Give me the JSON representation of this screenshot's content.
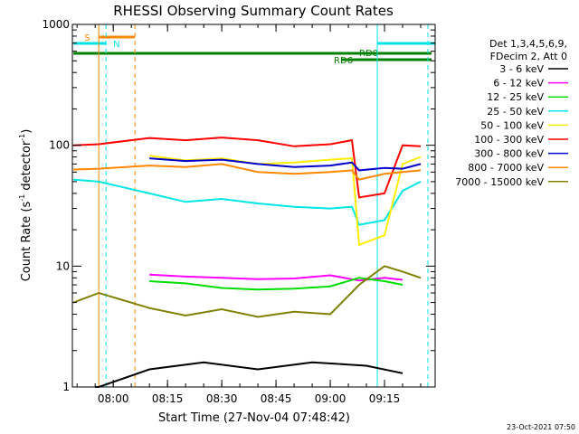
{
  "chart_data": {
    "type": "line",
    "title": "RHESSI Observing Summary Count Rates",
    "xlabel": "Start Time (27-Nov-04 07:48:42)",
    "ylabel_main": "Count Rate (s",
    "ylabel_sup1": "-1",
    "ylabel_mid": " detector",
    "ylabel_sup2": "-1",
    "ylabel_end": ")",
    "yscale": "log",
    "ylim": [
      1,
      1000
    ],
    "xlim": [
      "07:48:42",
      "09:29:00"
    ],
    "xticks": [
      "08:00",
      "08:15",
      "08:30",
      "08:45",
      "09:00",
      "09:15"
    ],
    "yticks": [
      "1",
      "10",
      "100",
      "1000"
    ],
    "date_stamp": "23-Oct-2021 07:50",
    "legend_header": [
      "Det 1,3,4,5,6,9,",
      "FDecim 2, Att 0"
    ],
    "series": [
      {
        "name": "3 - 6 keV",
        "color": "#000000",
        "points": [
          [
            "07:55",
            1
          ],
          [
            "07:56",
            1
          ],
          [
            "08:10",
            1.4
          ],
          [
            "08:25",
            1.6
          ],
          [
            "08:40",
            1.4
          ],
          [
            "08:55",
            1.6
          ],
          [
            "09:10",
            1.5
          ],
          [
            "09:20",
            1.3
          ]
        ]
      },
      {
        "name": "6 - 12 keV",
        "color": "#ff00ff",
        "points": [
          [
            "08:10",
            8.5
          ],
          [
            "08:20",
            8.2
          ],
          [
            "08:30",
            8
          ],
          [
            "08:40",
            7.8
          ],
          [
            "08:50",
            7.9
          ],
          [
            "09:00",
            8.4
          ],
          [
            "09:08",
            7.6
          ],
          [
            "09:15",
            8
          ],
          [
            "09:20",
            7.7
          ]
        ]
      },
      {
        "name": "12 - 25 keV",
        "color": "#00dd00",
        "points": [
          [
            "08:10",
            7.5
          ],
          [
            "08:20",
            7.2
          ],
          [
            "08:30",
            6.6
          ],
          [
            "08:40",
            6.4
          ],
          [
            "08:50",
            6.5
          ],
          [
            "09:00",
            6.8
          ],
          [
            "09:08",
            8
          ],
          [
            "09:15",
            7.5
          ],
          [
            "09:20",
            7
          ]
        ]
      },
      {
        "name": "25 - 50 keV",
        "color": "#00e5e5",
        "points": [
          [
            "07:49",
            52
          ],
          [
            "07:56",
            50
          ],
          [
            "08:10",
            40
          ],
          [
            "08:20",
            34
          ],
          [
            "08:30",
            36
          ],
          [
            "08:40",
            33
          ],
          [
            "08:50",
            31
          ],
          [
            "09:00",
            30
          ],
          [
            "09:06",
            31
          ],
          [
            "09:08",
            22
          ],
          [
            "09:15",
            24
          ],
          [
            "09:20",
            42
          ],
          [
            "09:25",
            50
          ]
        ]
      },
      {
        "name": "50 - 100 keV",
        "color": "#ffee00",
        "points": [
          [
            "08:10",
            82
          ],
          [
            "08:20",
            75
          ],
          [
            "08:30",
            78
          ],
          [
            "08:40",
            70
          ],
          [
            "08:50",
            72
          ],
          [
            "09:00",
            76
          ],
          [
            "09:06",
            78
          ],
          [
            "09:08",
            15
          ],
          [
            "09:15",
            18
          ],
          [
            "09:20",
            70
          ],
          [
            "09:25",
            80
          ]
        ]
      },
      {
        "name": "100 - 300 keV",
        "color": "#ff0000",
        "points": [
          [
            "07:49",
            100
          ],
          [
            "07:56",
            102
          ],
          [
            "08:10",
            115
          ],
          [
            "08:20",
            110
          ],
          [
            "08:30",
            116
          ],
          [
            "08:40",
            110
          ],
          [
            "08:50",
            98
          ],
          [
            "09:00",
            102
          ],
          [
            "09:06",
            110
          ],
          [
            "09:08",
            37
          ],
          [
            "09:15",
            40
          ],
          [
            "09:20",
            100
          ],
          [
            "09:25",
            98
          ]
        ]
      },
      {
        "name": "300 - 800 keV",
        "color": "#0000cc",
        "points": [
          [
            "08:10",
            78
          ],
          [
            "08:20",
            74
          ],
          [
            "08:30",
            76
          ],
          [
            "08:40",
            70
          ],
          [
            "08:50",
            66
          ],
          [
            "09:00",
            68
          ],
          [
            "09:06",
            72
          ],
          [
            "09:08",
            62
          ],
          [
            "09:15",
            65
          ],
          [
            "09:20",
            64
          ],
          [
            "09:25",
            70
          ]
        ]
      },
      {
        "name": "800 - 7000 keV",
        "color": "#ff8800",
        "points": [
          [
            "07:49",
            63
          ],
          [
            "07:56",
            64
          ],
          [
            "08:10",
            68
          ],
          [
            "08:20",
            66
          ],
          [
            "08:30",
            70
          ],
          [
            "08:40",
            60
          ],
          [
            "08:50",
            58
          ],
          [
            "09:00",
            60
          ],
          [
            "09:06",
            62
          ],
          [
            "09:08",
            52
          ],
          [
            "09:15",
            58
          ],
          [
            "09:20",
            60
          ],
          [
            "09:25",
            62
          ]
        ]
      },
      {
        "name": "7000 - 15000 keV",
        "color": "#808000",
        "points": [
          [
            "07:49",
            5
          ],
          [
            "07:56",
            6
          ],
          [
            "08:10",
            4.5
          ],
          [
            "08:20",
            3.9
          ],
          [
            "08:30",
            4.4
          ],
          [
            "08:40",
            3.8
          ],
          [
            "08:50",
            4.2
          ],
          [
            "09:00",
            4
          ],
          [
            "09:08",
            7
          ],
          [
            "09:15",
            10
          ],
          [
            "09:20",
            9
          ],
          [
            "09:25",
            8
          ]
        ]
      }
    ],
    "annotations": {
      "saa_label": "S",
      "night_label": "N",
      "rd0_label": "RD0",
      "rd6_label": "RD6",
      "saa_color": "#ff8800",
      "night_color": "#00e5e5",
      "rd_color": "#008000"
    }
  }
}
